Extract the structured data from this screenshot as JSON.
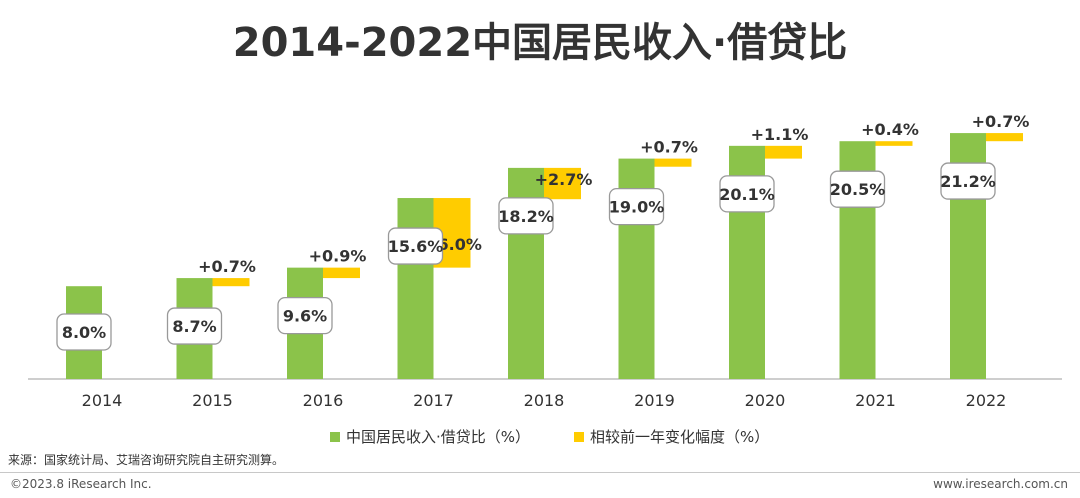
{
  "title": "2014-2022中国居民收入·借贷比",
  "chart_data": {
    "type": "bar",
    "categories": [
      "2014",
      "2015",
      "2016",
      "2017",
      "2018",
      "2019",
      "2020",
      "2021",
      "2022"
    ],
    "series": [
      {
        "name": "中国居民收入·借贷比（%）",
        "color": "#8BC34A",
        "values": [
          8.0,
          8.7,
          9.6,
          15.6,
          18.2,
          19.0,
          20.1,
          20.5,
          21.2
        ],
        "labels": [
          "8.0%",
          "8.7%",
          "9.6%",
          "15.6%",
          "18.2%",
          "19.0%",
          "20.1%",
          "20.5%",
          "21.2%"
        ]
      },
      {
        "name": "相较前一年变化幅度（%）",
        "color": "#FFCC00",
        "values": [
          null,
          0.7,
          0.9,
          6.0,
          2.7,
          0.7,
          1.1,
          0.4,
          0.7
        ],
        "labels": [
          "",
          "+0.7%",
          "+0.9%",
          "+6.0%",
          "+2.7%",
          "+0.7%",
          "+1.1%",
          "+0.4%",
          "+0.7%"
        ]
      }
    ],
    "ylim": [
      0,
      25
    ]
  },
  "legend": {
    "primary": "中国居民收入·借贷比（%）",
    "secondary": "相较前一年变化幅度（%）"
  },
  "source": "来源：国家统计局、艾瑞咨询研究院自主研究测算。",
  "copyright": "©2023.8 iResearch Inc.",
  "website": "www.iresearch.com.cn"
}
